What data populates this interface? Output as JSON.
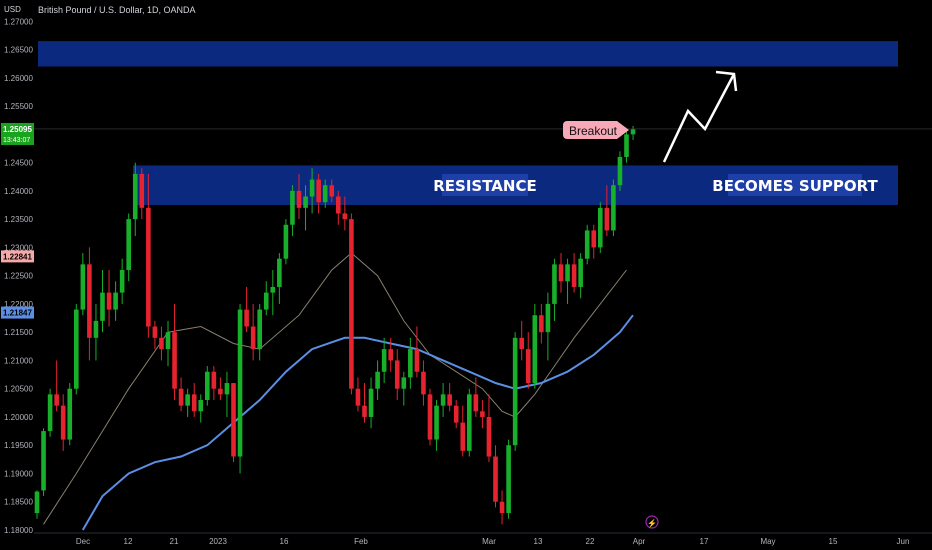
{
  "header": {
    "currency": "USD",
    "symbol": "British Pound / U.S. Dollar, 1D, OANDA"
  },
  "colors": {
    "background": "#000000",
    "up": "#18b02a",
    "down": "#e6232f",
    "zone_fill": "#0c2d8a",
    "ma_fast": "#8a8070",
    "ma_slow": "#5b8fe6",
    "price_badge": "#1aa41e",
    "ma_fast_badge": "#f7a9a8",
    "ma_slow_badge": "#5b8fe6",
    "annotation_text": "#ffffff",
    "breakout_bg": "#f7a9b8"
  },
  "chart_data": {
    "type": "candlestick",
    "y_ticks": [
      "1.27000",
      "1.26500",
      "1.26000",
      "1.25500",
      "1.24500",
      "1.24000",
      "1.23500",
      "1.23000",
      "1.22500",
      "1.22000",
      "1.21500",
      "1.21000",
      "1.20500",
      "1.20000",
      "1.19500",
      "1.19000",
      "1.18500",
      "1.18000"
    ],
    "x_ticks": [
      "Dec",
      "12",
      "21",
      "2023",
      "16",
      "Feb",
      "Mar",
      "13",
      "22",
      "Apr",
      "17",
      "May",
      "15",
      "Jun"
    ],
    "ylim": [
      1.18,
      1.272
    ],
    "price_badge": {
      "price": "1.25095",
      "countdown": "13:43:07"
    },
    "ma_fast_badge": "1.22841",
    "ma_slow_badge": "1.21847",
    "zones": [
      {
        "name": "upper",
        "y_top": 1.2665,
        "y_bottom": 1.262
      },
      {
        "name": "resistance-support",
        "y_top": 1.2445,
        "y_bottom": 1.2375
      }
    ],
    "labels": {
      "resistance": "RESISTANCE",
      "becomes_support": "BECOMES SUPPORT",
      "breakout": "Breakout"
    },
    "candles": [
      [
        1.183,
        1.187,
        1.182,
        1.1868
      ],
      [
        1.187,
        1.198,
        1.186,
        1.1975
      ],
      [
        1.1975,
        1.205,
        1.1965,
        1.204
      ],
      [
        1.204,
        1.21,
        1.201,
        1.202
      ],
      [
        1.202,
        1.204,
        1.194,
        1.196
      ],
      [
        1.196,
        1.206,
        1.195,
        1.205
      ],
      [
        1.205,
        1.22,
        1.204,
        1.219
      ],
      [
        1.219,
        1.229,
        1.218,
        1.227
      ],
      [
        1.227,
        1.23,
        1.21,
        1.214
      ],
      [
        1.214,
        1.22,
        1.21,
        1.217
      ],
      [
        1.217,
        1.226,
        1.215,
        1.222
      ],
      [
        1.222,
        1.226,
        1.216,
        1.219
      ],
      [
        1.219,
        1.224,
        1.217,
        1.222
      ],
      [
        1.222,
        1.228,
        1.22,
        1.226
      ],
      [
        1.226,
        1.236,
        1.224,
        1.235
      ],
      [
        1.235,
        1.245,
        1.232,
        1.243
      ],
      [
        1.243,
        1.244,
        1.235,
        1.237
      ],
      [
        1.237,
        1.243,
        1.214,
        1.216
      ],
      [
        1.216,
        1.217,
        1.212,
        1.214
      ],
      [
        1.214,
        1.216,
        1.21,
        1.212
      ],
      [
        1.212,
        1.217,
        1.209,
        1.215
      ],
      [
        1.215,
        1.22,
        1.203,
        1.205
      ],
      [
        1.205,
        1.207,
        1.201,
        1.202
      ],
      [
        1.202,
        1.205,
        1.2,
        1.204
      ],
      [
        1.204,
        1.206,
        1.2,
        1.201
      ],
      [
        1.201,
        1.204,
        1.199,
        1.203
      ],
      [
        1.203,
        1.209,
        1.202,
        1.208
      ],
      [
        1.208,
        1.209,
        1.203,
        1.205
      ],
      [
        1.205,
        1.207,
        1.203,
        1.204
      ],
      [
        1.204,
        1.208,
        1.2,
        1.206
      ],
      [
        1.206,
        1.206,
        1.192,
        1.193
      ],
      [
        1.193,
        1.22,
        1.19,
        1.219
      ],
      [
        1.219,
        1.223,
        1.215,
        1.216
      ],
      [
        1.216,
        1.22,
        1.21,
        1.212
      ],
      [
        1.212,
        1.22,
        1.21,
        1.219
      ],
      [
        1.219,
        1.224,
        1.218,
        1.222
      ],
      [
        1.222,
        1.226,
        1.218,
        1.223
      ],
      [
        1.223,
        1.229,
        1.22,
        1.228
      ],
      [
        1.228,
        1.235,
        1.227,
        1.234
      ],
      [
        1.234,
        1.241,
        1.232,
        1.24
      ],
      [
        1.24,
        1.243,
        1.235,
        1.237
      ],
      [
        1.237,
        1.241,
        1.233,
        1.239
      ],
      [
        1.239,
        1.244,
        1.236,
        1.242
      ],
      [
        1.242,
        1.243,
        1.236,
        1.238
      ],
      [
        1.238,
        1.242,
        1.237,
        1.241
      ],
      [
        1.241,
        1.242,
        1.238,
        1.239
      ],
      [
        1.239,
        1.24,
        1.234,
        1.236
      ],
      [
        1.236,
        1.239,
        1.233,
        1.235
      ],
      [
        1.235,
        1.236,
        1.204,
        1.205
      ],
      [
        1.205,
        1.207,
        1.201,
        1.202
      ],
      [
        1.202,
        1.206,
        1.199,
        1.2
      ],
      [
        1.2,
        1.207,
        1.198,
        1.205
      ],
      [
        1.205,
        1.21,
        1.203,
        1.208
      ],
      [
        1.208,
        1.214,
        1.206,
        1.212
      ],
      [
        1.212,
        1.214,
        1.208,
        1.21
      ],
      [
        1.21,
        1.212,
        1.203,
        1.205
      ],
      [
        1.205,
        1.208,
        1.202,
        1.207
      ],
      [
        1.207,
        1.214,
        1.205,
        1.212
      ],
      [
        1.212,
        1.216,
        1.207,
        1.208
      ],
      [
        1.208,
        1.21,
        1.202,
        1.204
      ],
      [
        1.204,
        1.205,
        1.195,
        1.196
      ],
      [
        1.196,
        1.203,
        1.194,
        1.202
      ],
      [
        1.202,
        1.206,
        1.2,
        1.204
      ],
      [
        1.204,
        1.206,
        1.201,
        1.202
      ],
      [
        1.202,
        1.203,
        1.198,
        1.199
      ],
      [
        1.199,
        1.202,
        1.193,
        1.194
      ],
      [
        1.194,
        1.205,
        1.193,
        1.204
      ],
      [
        1.204,
        1.207,
        1.2,
        1.201
      ],
      [
        1.201,
        1.203,
        1.198,
        1.2
      ],
      [
        1.2,
        1.204,
        1.192,
        1.193
      ],
      [
        1.193,
        1.195,
        1.184,
        1.185
      ],
      [
        1.185,
        1.187,
        1.181,
        1.183
      ],
      [
        1.183,
        1.196,
        1.182,
        1.195
      ],
      [
        1.195,
        1.215,
        1.194,
        1.214
      ],
      [
        1.214,
        1.217,
        1.21,
        1.212
      ],
      [
        1.212,
        1.215,
        1.205,
        1.206
      ],
      [
        1.206,
        1.22,
        1.205,
        1.218
      ],
      [
        1.218,
        1.22,
        1.213,
        1.215
      ],
      [
        1.215,
        1.222,
        1.21,
        1.22
      ],
      [
        1.22,
        1.228,
        1.217,
        1.227
      ],
      [
        1.227,
        1.229,
        1.222,
        1.224
      ],
      [
        1.224,
        1.228,
        1.22,
        1.227
      ],
      [
        1.227,
        1.229,
        1.222,
        1.223
      ],
      [
        1.223,
        1.229,
        1.221,
        1.228
      ],
      [
        1.228,
        1.234,
        1.227,
        1.233
      ],
      [
        1.233,
        1.234,
        1.228,
        1.23
      ],
      [
        1.23,
        1.238,
        1.229,
        1.237
      ],
      [
        1.237,
        1.241,
        1.232,
        1.233
      ],
      [
        1.233,
        1.242,
        1.232,
        1.241
      ],
      [
        1.241,
        1.247,
        1.24,
        1.246
      ],
      [
        1.246,
        1.251,
        1.245,
        1.25
      ],
      [
        1.25,
        1.2515,
        1.249,
        1.2509
      ]
    ],
    "ma_fast": [
      [
        1.181,
        1
      ],
      [
        1.19,
        6
      ],
      [
        1.205,
        14
      ],
      [
        1.215,
        20
      ],
      [
        1.216,
        25
      ],
      [
        1.213,
        30
      ],
      [
        1.212,
        34
      ],
      [
        1.218,
        40
      ],
      [
        1.226,
        45
      ],
      [
        1.229,
        48
      ],
      [
        1.225,
        52
      ],
      [
        1.217,
        56
      ],
      [
        1.211,
        60
      ],
      [
        1.208,
        64
      ],
      [
        1.205,
        68
      ],
      [
        1.201,
        71
      ],
      [
        1.2,
        73
      ],
      [
        1.204,
        76
      ],
      [
        1.209,
        79
      ],
      [
        1.214,
        82
      ],
      [
        1.22,
        86
      ],
      [
        1.226,
        90
      ]
    ],
    "ma_slow": [
      [
        1.18,
        7
      ],
      [
        1.186,
        10
      ],
      [
        1.19,
        14
      ],
      [
        1.192,
        18
      ],
      [
        1.193,
        22
      ],
      [
        1.195,
        26
      ],
      [
        1.199,
        30
      ],
      [
        1.203,
        34
      ],
      [
        1.208,
        38
      ],
      [
        1.212,
        42
      ],
      [
        1.214,
        47
      ],
      [
        1.214,
        50
      ],
      [
        1.213,
        54
      ],
      [
        1.212,
        58
      ],
      [
        1.21,
        62
      ],
      [
        1.208,
        66
      ],
      [
        1.206,
        70
      ],
      [
        1.205,
        73
      ],
      [
        1.206,
        77
      ],
      [
        1.208,
        81
      ],
      [
        1.211,
        85
      ],
      [
        1.215,
        89
      ],
      [
        1.218,
        91
      ]
    ]
  }
}
